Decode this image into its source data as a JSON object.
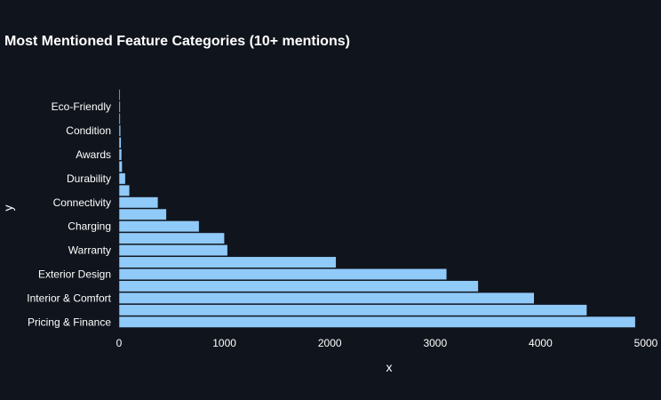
{
  "chart_data": {
    "type": "bar",
    "orientation": "horizontal",
    "title": "Most Mentioned Feature Categories (10+ mentions)",
    "xlabel": "x",
    "ylabel": "y",
    "xlim": [
      0,
      5000
    ],
    "xticks": [
      0,
      1000,
      2000,
      3000,
      4000,
      5000
    ],
    "bar_color": "#90caf9",
    "bar_edge_color": "#10141c",
    "background": "#10141c",
    "grid": false,
    "categories": [
      "Pricing & Finance",
      "",
      "Interior & Comfort",
      "",
      "Exterior Design",
      "",
      "Warranty",
      "",
      "Charging",
      "",
      "Connectivity",
      "",
      "Durability",
      "",
      "Awards",
      "",
      "Condition",
      "",
      "Eco-Friendly",
      ""
    ],
    "values": [
      4900,
      4440,
      3940,
      3410,
      3110,
      2060,
      1030,
      1000,
      760,
      450,
      370,
      100,
      60,
      30,
      25,
      20,
      15,
      12,
      12,
      10
    ]
  }
}
